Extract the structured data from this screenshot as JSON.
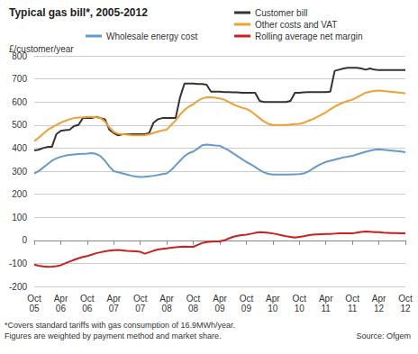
{
  "chart_data": {
    "type": "line",
    "title": "Typical gas bill*, 2005-2012",
    "ylabel": "£/customer/year",
    "annotations": [
      "*Covers standard tariffs with gas consumption of 16.9MWh/year.",
      "Figures are weighted by payment method and market share."
    ],
    "source": "Source: Ofgem",
    "categories": [
      "Oct 05",
      null,
      null,
      null,
      null,
      null,
      "Apr 06",
      null,
      null,
      null,
      null,
      null,
      "Oct 06",
      null,
      null,
      null,
      null,
      null,
      "Apr 07",
      null,
      null,
      null,
      null,
      null,
      "Oct 07",
      null,
      null,
      null,
      null,
      null,
      "Apr 08",
      null,
      null,
      null,
      null,
      null,
      "Oct 08",
      null,
      null,
      null,
      null,
      null,
      "Apr 09",
      null,
      null,
      null,
      null,
      null,
      "Oct 09",
      null,
      null,
      null,
      null,
      null,
      "Apr 10",
      null,
      null,
      null,
      null,
      null,
      "Oct 10",
      null,
      null,
      null,
      null,
      null,
      "Apr 11",
      null,
      null,
      null,
      null,
      null,
      "Oct 11",
      null,
      null,
      null,
      null,
      null,
      "Apr 12",
      null,
      null,
      null,
      null,
      null,
      "Oct 12"
    ],
    "series": [
      {
        "name": "Customer bill",
        "color": "#333333",
        "values": [
          390,
          393,
          400,
          405,
          405,
          460,
          475,
          478,
          480,
          495,
          500,
          530,
          530,
          530,
          535,
          530,
          525,
          480,
          465,
          455,
          460,
          460,
          460,
          460,
          460,
          460,
          465,
          510,
          525,
          530,
          530,
          530,
          530,
          620,
          680,
          680,
          680,
          678,
          678,
          675,
          645,
          645,
          645,
          643,
          643,
          642,
          642,
          640,
          640,
          640,
          640,
          605,
          600,
          600,
          600,
          600,
          600,
          600,
          605,
          640,
          640,
          642,
          643,
          643,
          643,
          643,
          643,
          645,
          735,
          740,
          745,
          748,
          748,
          748,
          745,
          740,
          745,
          740,
          738,
          738,
          738,
          738,
          738,
          738,
          738
        ]
      },
      {
        "name": "Other costs and VAT",
        "color": "#f0a030",
        "values": [
          430,
          445,
          462,
          478,
          490,
          500,
          510,
          518,
          525,
          530,
          532,
          533,
          535,
          535,
          533,
          530,
          515,
          490,
          470,
          462,
          460,
          458,
          456,
          455,
          455,
          456,
          460,
          465,
          472,
          477,
          480,
          500,
          520,
          545,
          565,
          580,
          590,
          605,
          615,
          620,
          620,
          618,
          615,
          610,
          600,
          590,
          582,
          575,
          570,
          560,
          545,
          530,
          515,
          505,
          500,
          500,
          500,
          500,
          502,
          504,
          505,
          510,
          518,
          525,
          535,
          545,
          555,
          568,
          580,
          590,
          598,
          605,
          610,
          620,
          630,
          640,
          645,
          648,
          650,
          648,
          646,
          644,
          642,
          640,
          637
        ]
      },
      {
        "name": "Wholesale energy cost",
        "color": "#6699cc",
        "values": [
          290,
          300,
          315,
          330,
          345,
          355,
          362,
          367,
          370,
          372,
          374,
          375,
          376,
          378,
          375,
          365,
          345,
          320,
          300,
          295,
          290,
          285,
          280,
          277,
          275,
          276,
          278,
          280,
          283,
          287,
          290,
          305,
          325,
          345,
          365,
          378,
          385,
          398,
          412,
          415,
          413,
          411,
          410,
          400,
          390,
          378,
          365,
          352,
          340,
          330,
          318,
          305,
          295,
          288,
          285,
          285,
          285,
          285,
          285,
          286,
          287,
          290,
          298,
          310,
          322,
          332,
          340,
          345,
          350,
          355,
          360,
          363,
          366,
          372,
          378,
          384,
          389,
          393,
          395,
          393,
          391,
          389,
          387,
          385,
          382
        ]
      },
      {
        "name": "Rolling average net margin",
        "color": "#cc1f1f",
        "values": [
          -105,
          -110,
          -113,
          -115,
          -114,
          -112,
          -108,
          -100,
          -92,
          -85,
          -78,
          -72,
          -68,
          -62,
          -56,
          -52,
          -48,
          -45,
          -43,
          -42,
          -44,
          -46,
          -47,
          -48,
          -50,
          -58,
          -52,
          -45,
          -40,
          -37,
          -35,
          -32,
          -30,
          -28,
          -27,
          -28,
          -28,
          -20,
          -12,
          -8,
          -6,
          -5,
          -5,
          0,
          8,
          15,
          20,
          23,
          25,
          28,
          32,
          35,
          34,
          32,
          30,
          26,
          22,
          18,
          15,
          12,
          15,
          18,
          22,
          25,
          26,
          27,
          28,
          28,
          29,
          30,
          30,
          30,
          30,
          33,
          36,
          38,
          37,
          35,
          35,
          33,
          32,
          31,
          31,
          30,
          30
        ]
      }
    ],
    "ylim": [
      -200,
      800
    ],
    "yticks": [
      -200,
      -100,
      0,
      100,
      200,
      300,
      400,
      500,
      600,
      700,
      800
    ],
    "grid": true,
    "legend": "top",
    "marker": "none"
  }
}
